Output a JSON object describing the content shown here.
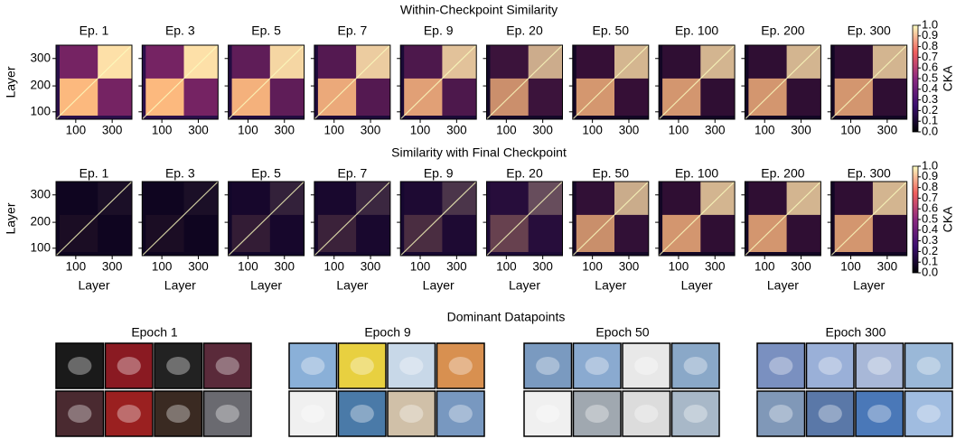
{
  "figure": {
    "rows": [
      {
        "title": "Within-Checkpoint Similarity",
        "ylabel": "Layer",
        "panels": [
          "Ep. 1",
          "Ep. 3",
          "Ep. 5",
          "Ep. 7",
          "Ep. 9",
          "Ep. 20",
          "Ep. 50",
          "Ep. 100",
          "Ep. 200",
          "Ep. 300"
        ],
        "yticks": [
          100,
          200,
          300
        ],
        "xticks": [
          100,
          300
        ],
        "colorbar": {
          "label": "CKA",
          "ticks": [
            "0.0",
            "0.1",
            "0.2",
            "0.3",
            "0.4",
            "0.5",
            "0.6",
            "0.7",
            "0.8",
            "0.9",
            "1.0"
          ]
        }
      },
      {
        "title": "Similarity with Final Checkpoint",
        "ylabel": "Layer",
        "xlabel": "Layer",
        "panels": [
          "Ep. 1",
          "Ep. 3",
          "Ep. 5",
          "Ep. 7",
          "Ep. 9",
          "Ep. 20",
          "Ep. 50",
          "Ep. 100",
          "Ep. 200",
          "Ep. 300"
        ],
        "yticks": [
          100,
          200,
          300
        ],
        "xticks": [
          100,
          300
        ],
        "colorbar": {
          "label": "CKA",
          "ticks": [
            "0.0",
            "0.1",
            "0.2",
            "0.3",
            "0.4",
            "0.5",
            "0.6",
            "0.7",
            "0.8",
            "0.9",
            "1.0"
          ]
        }
      }
    ],
    "datapoints": {
      "title": "Dominant Datapoints",
      "groups": [
        "Epoch 1",
        "Epoch 9",
        "Epoch 50",
        "Epoch 300"
      ]
    }
  }
}
